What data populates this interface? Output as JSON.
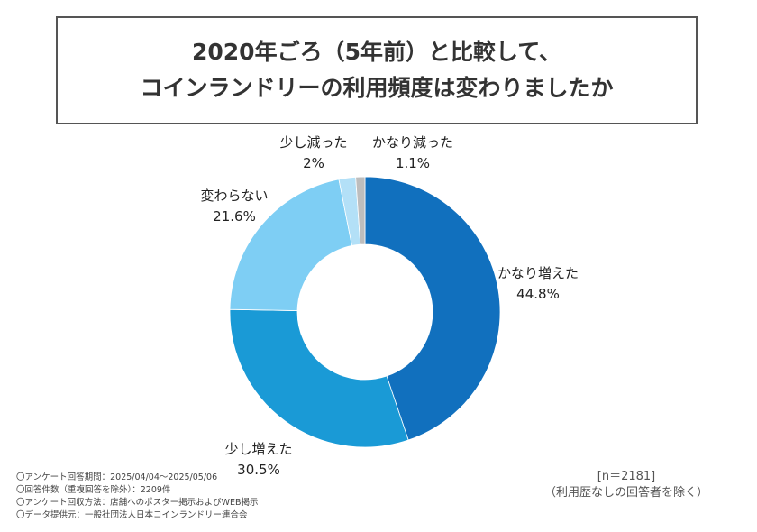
{
  "title": {
    "line1": "2020年ごろ（5年前）と比較して、",
    "line2": "コインランドリーの利用頻度は変わりましたか"
  },
  "chart_data": {
    "type": "pie",
    "donut": true,
    "start": "top, clockwise",
    "categories": [
      "かなり増えた",
      "少し増えた",
      "変わらない",
      "少し減った",
      "かなり減った"
    ],
    "values": [
      44.8,
      30.5,
      21.6,
      2,
      1.1
    ],
    "value_labels": [
      "44.8%",
      "30.5%",
      "21.6%",
      "2%",
      "1.1%"
    ],
    "colors": [
      "#1170BE",
      "#1A9AD6",
      "#7ECEF4",
      "#B3E0F7",
      "#BDBDBD"
    ]
  },
  "notes": [
    "〇アンケート回答期間：2025/04/04〜2025/05/06",
    "〇回答件数（重複回答を除外）：2209件",
    "〇アンケート回収方法：店舗へのポスター掲示およびWEB掲示",
    "〇データ提供元：一般社団法人日本コインランドリー連合会"
  ],
  "sample": {
    "n": "[n＝2181]",
    "note": "（利用歴なしの回答者を除く）"
  }
}
